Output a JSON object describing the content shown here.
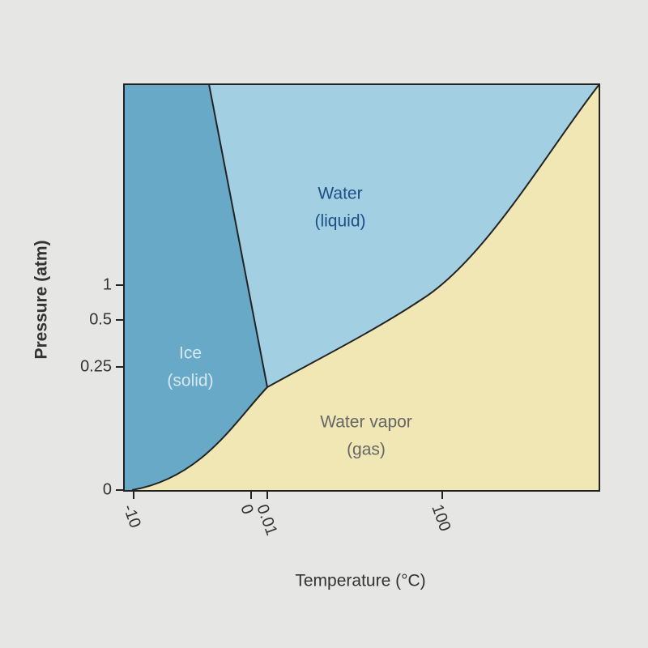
{
  "diagram": {
    "axes": {
      "y_title": "Pressure (atm)",
      "x_title": "Temperature (°C)",
      "y_ticks": [
        "1",
        "0.5",
        "0.25",
        "0"
      ],
      "x_ticks": [
        "-10",
        "0",
        "0.01",
        "100"
      ]
    },
    "regions": [
      {
        "lines": [
          "Ice",
          "(solid)"
        ]
      },
      {
        "lines": [
          "Water",
          "(liquid)"
        ]
      },
      {
        "lines": [
          "Water vapor",
          "(gas)"
        ]
      }
    ]
  }
}
